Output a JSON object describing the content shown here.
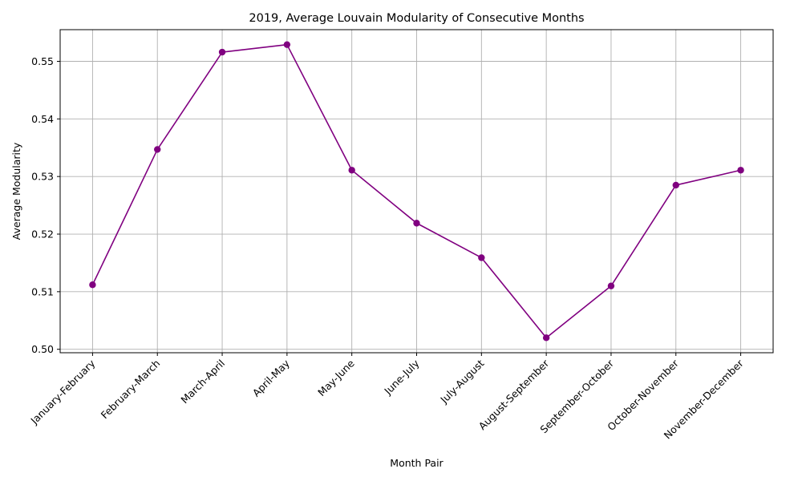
{
  "chart_data": {
    "type": "line",
    "title": "2019, Average Louvain Modularity of Consecutive Months",
    "xlabel": "Month Pair",
    "ylabel": "Average Modularity",
    "categories": [
      "January-February",
      "February-March",
      "March-April",
      "April-May",
      "May-June",
      "June-July",
      "July-August",
      "August-September",
      "September-October",
      "October-November",
      "November-December"
    ],
    "series": [
      {
        "values": [
          0.5112,
          0.5347,
          0.5516,
          0.5529,
          0.5311,
          0.5219,
          0.5159,
          0.502,
          0.511,
          0.5285,
          0.5311
        ],
        "color": "#800080",
        "marker": "circle"
      }
    ],
    "ylim": [
      0.4994,
      0.5555
    ],
    "yticks": [
      0.5,
      0.51,
      0.52,
      0.53,
      0.54,
      0.55
    ],
    "ytick_labels": [
      "0.50",
      "0.51",
      "0.52",
      "0.53",
      "0.54",
      "0.55"
    ],
    "grid": true,
    "legend": "none"
  }
}
